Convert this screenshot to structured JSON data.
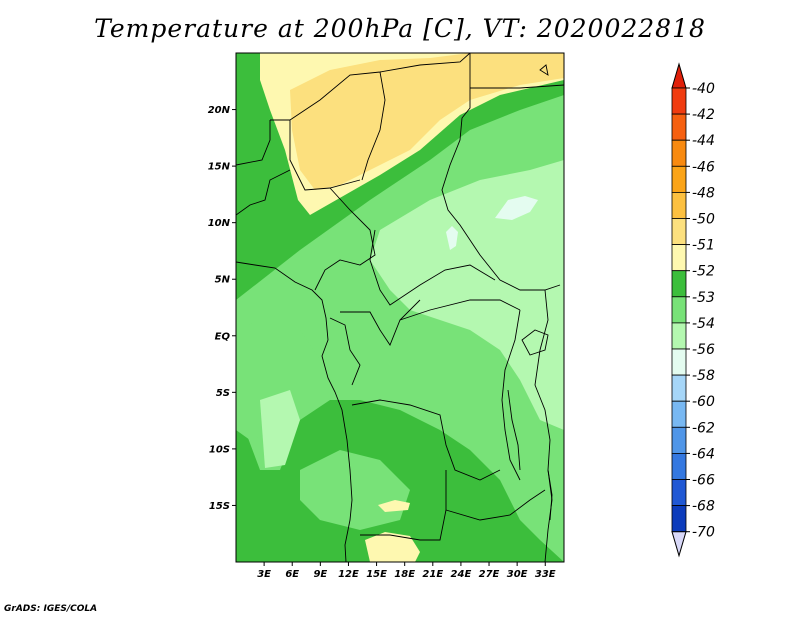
{
  "title": "Temperature at 200hPa [C], VT: 2020022818",
  "credit": "GrADS: IGES/COLA",
  "map": {
    "lon_range": [
      0,
      35
    ],
    "lat_range": [
      -20,
      25
    ],
    "lat_ticks": [
      {
        "value": 20,
        "label": "20N"
      },
      {
        "value": 15,
        "label": "15N"
      },
      {
        "value": 10,
        "label": "10N"
      },
      {
        "value": 5,
        "label": "5N"
      },
      {
        "value": 0,
        "label": "EQ"
      },
      {
        "value": -5,
        "label": "5S"
      },
      {
        "value": -10,
        "label": "10S"
      },
      {
        "value": -15,
        "label": "15S"
      }
    ],
    "lon_ticks": [
      {
        "value": 3,
        "label": "3E"
      },
      {
        "value": 6,
        "label": "6E"
      },
      {
        "value": 9,
        "label": "9E"
      },
      {
        "value": 12,
        "label": "12E"
      },
      {
        "value": 15,
        "label": "15E"
      },
      {
        "value": 18,
        "label": "18E"
      },
      {
        "value": 21,
        "label": "21E"
      },
      {
        "value": 24,
        "label": "24E"
      },
      {
        "value": 27,
        "label": "27E"
      },
      {
        "value": 30,
        "label": "30E"
      },
      {
        "value": 33,
        "label": "33E"
      }
    ]
  },
  "colorbar": {
    "levels": [
      {
        "label": "-40",
        "color": "#f03c10"
      },
      {
        "label": "-42",
        "color": "#f66010"
      },
      {
        "label": "-44",
        "color": "#f88a10"
      },
      {
        "label": "-46",
        "color": "#fba418"
      },
      {
        "label": "-48",
        "color": "#fcc040"
      },
      {
        "label": "-50",
        "color": "#fce07e"
      },
      {
        "label": "-51",
        "color": "#fef8b0"
      },
      {
        "label": "-52",
        "color": "#3cbe3c"
      },
      {
        "label": "-53",
        "color": "#78e278"
      },
      {
        "label": "-54",
        "color": "#b4f8b0"
      },
      {
        "label": "-56",
        "color": "#e4fcf0"
      },
      {
        "label": "-58",
        "color": "#a6d6f8"
      },
      {
        "label": "-60",
        "color": "#78b8f2"
      },
      {
        "label": "-62",
        "color": "#5096e8"
      },
      {
        "label": "-64",
        "color": "#3478e0"
      },
      {
        "label": "-66",
        "color": "#2058d4"
      },
      {
        "label": "-68",
        "color": "#0c3cbc"
      },
      {
        "label": "-70",
        "color": "#0a1a7c"
      }
    ],
    "top_triangle_color": "#e0200a",
    "bottom_triangle_color": "#d8d8f8"
  },
  "field_colors": {
    "warmest": "#fce07e",
    "warm": "#fef8b0",
    "base": "#3cbe3c",
    "mid": "#78e278",
    "cool": "#b4f8b0",
    "coolest": "#e4fcf0"
  }
}
